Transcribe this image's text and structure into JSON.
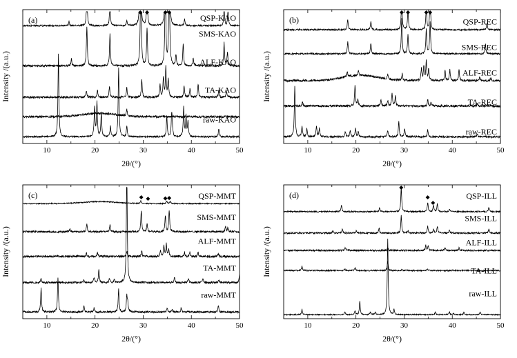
{
  "chart_data": [
    {
      "type": "line",
      "panel_label": "(a)",
      "xlabel": "2θ/(°)",
      "ylabel": "Intensity /(a.u.)",
      "xlim": [
        5,
        50
      ],
      "xticks": [
        "10",
        "20",
        "30",
        "40",
        "50"
      ],
      "grid": false,
      "series": [
        {
          "name": "QSP-KAO",
          "baseline": 0.88,
          "noise": 0.006,
          "peaks": [
            [
              14.6,
              0.03
            ],
            [
              18.3,
              0.26
            ],
            [
              23.1,
              0.18
            ],
            [
              26.6,
              0.04
            ],
            [
              29.4,
              0.8
            ],
            [
              30.8,
              0.26
            ],
            [
              34.6,
              0.58
            ],
            [
              35.4,
              0.75
            ],
            [
              38.6,
              0.05
            ],
            [
              46.8,
              0.13
            ],
            [
              47.6,
              0.11
            ]
          ]
        },
        {
          "name": "SMS-KAO",
          "baseline": 0.58,
          "noise": 0.008,
          "peaks": [
            [
              15.1,
              0.05
            ],
            [
              18.3,
              0.3
            ],
            [
              23.1,
              0.24
            ],
            [
              29.5,
              0.77
            ],
            [
              30.8,
              0.28
            ],
            [
              34.6,
              0.68
            ],
            [
              35.4,
              0.78
            ],
            [
              36.8,
              0.08
            ],
            [
              38.3,
              0.16
            ],
            [
              40.4,
              0.06
            ],
            [
              46.8,
              0.17
            ],
            [
              47.5,
              0.1
            ]
          ]
        },
        {
          "name": "ALF-KAO",
          "baseline": 0.345,
          "noise": 0.008,
          "peaks": [
            [
              18.2,
              0.05
            ],
            [
              20.5,
              0.05
            ],
            [
              23.0,
              0.08
            ],
            [
              26.6,
              0.07
            ],
            [
              29.7,
              0.13
            ],
            [
              33.5,
              0.1
            ],
            [
              34.2,
              0.15
            ],
            [
              34.7,
              0.22
            ],
            [
              35.2,
              0.13
            ],
            [
              38.5,
              0.09
            ],
            [
              39.7,
              0.06
            ],
            [
              41.4,
              0.1
            ],
            [
              45.7,
              0.06
            ],
            [
              47.3,
              0.05
            ]
          ]
        },
        {
          "name": "TA-KAO",
          "baseline": 0.2,
          "noise": 0.008,
          "hump": 0.025,
          "peaks": [
            [
              26.6,
              0.05
            ]
          ]
        },
        {
          "name": "raw-KAO",
          "baseline": 0.05,
          "noise": 0.006,
          "peaks": [
            [
              12.4,
              0.62
            ],
            [
              19.9,
              0.22
            ],
            [
              20.4,
              0.26
            ],
            [
              21.3,
              0.18
            ],
            [
              23.2,
              0.08
            ],
            [
              24.9,
              0.52
            ],
            [
              26.6,
              0.08
            ],
            [
              34.9,
              0.16
            ],
            [
              35.9,
              0.12
            ],
            [
              36.0,
              0.1
            ],
            [
              38.4,
              0.22
            ],
            [
              38.9,
              0.15
            ],
            [
              39.3,
              0.11
            ],
            [
              45.7,
              0.06
            ]
          ]
        }
      ],
      "markers": [
        29.4,
        30.8,
        34.6,
        35.4
      ]
    },
    {
      "type": "line",
      "panel_label": "(b)",
      "xlabel": "2θ/(°)",
      "ylabel": "Intensity /(a.u.)",
      "xlim": [
        5,
        50
      ],
      "xticks": [
        "10",
        "20",
        "30",
        "40",
        "50"
      ],
      "grid": false,
      "series": [
        {
          "name": "QSP-REC",
          "baseline": 0.85,
          "noise": 0.006,
          "peaks": [
            [
              18.3,
              0.08
            ],
            [
              23.1,
              0.06
            ],
            [
              29.5,
              0.26
            ],
            [
              30.8,
              0.15
            ],
            [
              34.6,
              0.18
            ],
            [
              35.4,
              0.26
            ],
            [
              47.2,
              0.05
            ]
          ]
        },
        {
          "name": "SMS-REC",
          "baseline": 0.67,
          "noise": 0.006,
          "peaks": [
            [
              18.3,
              0.09
            ],
            [
              23.1,
              0.08
            ],
            [
              29.5,
              0.26
            ],
            [
              30.8,
              0.14
            ],
            [
              34.6,
              0.18
            ],
            [
              35.4,
              0.24
            ],
            [
              46.9,
              0.07
            ]
          ]
        },
        {
          "name": "ALF-REC",
          "baseline": 0.47,
          "noise": 0.008,
          "hump": 0.04,
          "peaks": [
            [
              18.2,
              0.04
            ],
            [
              20.5,
              0.03
            ],
            [
              26.6,
              0.04
            ],
            [
              29.6,
              0.05
            ],
            [
              33.6,
              0.09
            ],
            [
              34.1,
              0.11
            ],
            [
              34.6,
              0.14
            ],
            [
              35.1,
              0.09
            ],
            [
              38.5,
              0.08
            ],
            [
              39.5,
              0.08
            ],
            [
              41.4,
              0.08
            ],
            [
              45.7,
              0.03
            ],
            [
              48.0,
              0.02
            ]
          ]
        },
        {
          "name": "TA-REC",
          "baseline": 0.28,
          "noise": 0.008,
          "peaks": [
            [
              8.9,
              0.03
            ],
            [
              19.8,
              0.15
            ],
            [
              20.4,
              0.05
            ],
            [
              25.2,
              0.05
            ],
            [
              26.6,
              0.04
            ],
            [
              27.5,
              0.1
            ],
            [
              28.2,
              0.07
            ],
            [
              34.9,
              0.05
            ],
            [
              35.6,
              0.03
            ],
            [
              45.2,
              0.02
            ]
          ]
        },
        {
          "name": "raw-REC",
          "baseline": 0.05,
          "noise": 0.007,
          "peaks": [
            [
              7.3,
              0.38
            ],
            [
              8.8,
              0.08
            ],
            [
              9.8,
              0.06
            ],
            [
              11.8,
              0.08
            ],
            [
              12.4,
              0.06
            ],
            [
              17.8,
              0.04
            ],
            [
              18.8,
              0.05
            ],
            [
              19.9,
              0.06
            ],
            [
              20.5,
              0.04
            ],
            [
              26.6,
              0.05
            ],
            [
              28.9,
              0.11
            ],
            [
              30.1,
              0.06
            ],
            [
              34.9,
              0.05
            ],
            [
              45.2,
              0.02
            ]
          ]
        }
      ],
      "markers": [
        29.5,
        30.8,
        34.6,
        35.4
      ]
    },
    {
      "type": "line",
      "panel_label": "(c)",
      "xlabel": "2θ/(°)",
      "ylabel": "Intensity /(a.u.)",
      "xlim": [
        5,
        50
      ],
      "xticks": [
        "10",
        "20",
        "30",
        "40",
        "50"
      ],
      "grid": false,
      "series": [
        {
          "name": "QSP-MMT",
          "baseline": 0.86,
          "noise": 0.004,
          "hump": 0.015,
          "peaks": [
            [
              29.5,
              0.02
            ],
            [
              34.9,
              0.02
            ],
            [
              35.6,
              0.02
            ]
          ]
        },
        {
          "name": "SMS-MMT",
          "baseline": 0.65,
          "noise": 0.007,
          "peaks": [
            [
              14.8,
              0.02
            ],
            [
              18.3,
              0.06
            ],
            [
              23.1,
              0.05
            ],
            [
              29.6,
              0.16
            ],
            [
              30.8,
              0.06
            ],
            [
              34.6,
              0.12
            ],
            [
              35.4,
              0.16
            ],
            [
              47.1,
              0.04
            ],
            [
              47.6,
              0.03
            ]
          ]
        },
        {
          "name": "ALF-MMT",
          "baseline": 0.465,
          "noise": 0.008,
          "peaks": [
            [
              18.2,
              0.03
            ],
            [
              20.5,
              0.03
            ],
            [
              26.6,
              0.04
            ],
            [
              29.7,
              0.04
            ],
            [
              33.6,
              0.05
            ],
            [
              34.3,
              0.08
            ],
            [
              34.8,
              0.09
            ],
            [
              35.3,
              0.05
            ],
            [
              38.6,
              0.03
            ],
            [
              39.7,
              0.03
            ],
            [
              41.4,
              0.03
            ],
            [
              45.6,
              0.02
            ]
          ]
        },
        {
          "name": "TA-MMT",
          "baseline": 0.27,
          "noise": 0.007,
          "peaks": [
            [
              8.8,
              0.03
            ],
            [
              17.7,
              0.02
            ],
            [
              19.8,
              0.04
            ],
            [
              20.8,
              0.1
            ],
            [
              23.0,
              0.03
            ],
            [
              24.0,
              0.02
            ],
            [
              26.6,
              0.85
            ],
            [
              36.5,
              0.04
            ],
            [
              39.4,
              0.03
            ],
            [
              42.4,
              0.03
            ],
            [
              45.7,
              0.02
            ],
            [
              50.0,
              0.06
            ]
          ]
        },
        {
          "name": "raw-MMT",
          "baseline": 0.05,
          "noise": 0.007,
          "peaks": [
            [
              8.8,
              0.18
            ],
            [
              12.3,
              0.26
            ],
            [
              17.7,
              0.05
            ],
            [
              19.8,
              0.03
            ],
            [
              24.9,
              0.17
            ],
            [
              26.6,
              0.12
            ],
            [
              26.8,
              0.06
            ],
            [
              35.0,
              0.03
            ],
            [
              36.0,
              0.02
            ],
            [
              37.9,
              0.03
            ],
            [
              45.6,
              0.05
            ]
          ]
        }
      ],
      "markers": [
        29.6,
        31.0,
        34.6,
        35.4
      ]
    },
    {
      "type": "line",
      "panel_label": "(d)",
      "xlabel": "2θ/(°)",
      "ylabel": "Intensity /(a.u.)",
      "xlim": [
        5,
        50
      ],
      "xticks": [
        "10",
        "20",
        "30",
        "40",
        "50"
      ],
      "grid": false,
      "series": [
        {
          "name": "QSP-ILL",
          "baseline": 0.8,
          "noise": 0.005,
          "peaks": [
            [
              17.0,
              0.05
            ],
            [
              24.9,
              0.03
            ],
            [
              29.4,
              0.18
            ],
            [
              34.9,
              0.07
            ],
            [
              36.1,
              0.05
            ],
            [
              36.9,
              0.06
            ],
            [
              39.4,
              0.02
            ],
            [
              47.6,
              0.03
            ]
          ]
        },
        {
          "name": "SMS-ILL",
          "baseline": 0.64,
          "noise": 0.006,
          "peaks": [
            [
              15.2,
              0.02
            ],
            [
              17.2,
              0.03
            ],
            [
              20.1,
              0.02
            ],
            [
              24.8,
              0.04
            ],
            [
              29.4,
              0.13
            ],
            [
              30.8,
              0.02
            ],
            [
              34.9,
              0.05
            ],
            [
              36.1,
              0.03
            ],
            [
              36.9,
              0.05
            ],
            [
              39.4,
              0.02
            ],
            [
              47.6,
              0.03
            ]
          ]
        },
        {
          "name": "ALF-ILL",
          "baseline": 0.51,
          "noise": 0.006,
          "peaks": [
            [
              17.8,
              0.02
            ],
            [
              26.6,
              0.02
            ],
            [
              34.5,
              0.04
            ],
            [
              35.0,
              0.03
            ],
            [
              38.5,
              0.02
            ],
            [
              41.4,
              0.02
            ]
          ]
        },
        {
          "name": "TA-ILL",
          "baseline": 0.36,
          "noise": 0.005,
          "peaks": [
            [
              8.8,
              0.03
            ],
            [
              17.7,
              0.01
            ],
            [
              19.8,
              0.02
            ],
            [
              26.6,
              0.07
            ],
            [
              29.6,
              0.01
            ],
            [
              34.9,
              0.01
            ]
          ]
        },
        {
          "name": "raw-ILL",
          "baseline": 0.03,
          "noise": 0.004,
          "peaks": [
            [
              8.8,
              0.04
            ],
            [
              17.7,
              0.02
            ],
            [
              19.8,
              0.03
            ],
            [
              20.8,
              0.1
            ],
            [
              23.0,
              0.02
            ],
            [
              24.0,
              0.02
            ],
            [
              26.6,
              0.57
            ],
            [
              27.9,
              0.04
            ],
            [
              36.5,
              0.02
            ],
            [
              39.4,
              0.02
            ],
            [
              40.3,
              0.01
            ],
            [
              42.4,
              0.02
            ],
            [
              45.8,
              0.02
            ]
          ]
        }
      ],
      "markers": [
        29.4,
        34.9,
        36.0
      ]
    }
  ]
}
